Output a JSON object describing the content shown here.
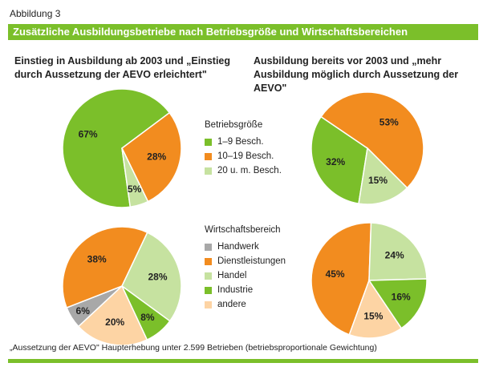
{
  "figure_label": "Abbildung 3",
  "title": "Zusätzliche Ausbildungsbetriebe nach Betriebsgröße und Wirtschaftsbereichen",
  "subtitle_left": "Einstieg in Ausbildung ab 2003 und „Einstieg durch Aussetzung der AEVO erleichtert\"",
  "subtitle_right": "Ausbildung bereits vor 2003 und „mehr Ausbildung möglich durch Aussetzung der AEVO\"",
  "legend_size": {
    "title": "Betriebsgröße",
    "items": [
      "1–9 Besch.",
      "10–19 Besch.",
      "20 u. m. Besch."
    ]
  },
  "legend_sector": {
    "title": "Wirtschaftsbereich",
    "items": [
      "Handwerk",
      "Dienstleistungen",
      "Handel",
      "Industrie",
      "andere"
    ]
  },
  "footer": "„Aussetzung der AEVO\" Haupterhebung unter 2.599 Betrieben (betriebsproportionale Gewichtung)",
  "colors": {
    "brand_green": "#7bbf2a",
    "green": "#7bbf2a",
    "orange": "#f28c1f",
    "light_green": "#c6e2a0",
    "gray": "#a8a8a8",
    "peach": "#fdd4a4"
  },
  "chart_data": [
    {
      "type": "pie",
      "title": "Einstieg in Ausbildung ab 2003 – Betriebsgröße",
      "categories": [
        "1–9 Besch.",
        "10–19 Besch.",
        "20 u. m. Besch."
      ],
      "values": [
        67,
        28,
        5
      ],
      "labels": [
        "67%",
        "28%",
        "5%"
      ]
    },
    {
      "type": "pie",
      "title": "Ausbildung bereits vor 2003 – Betriebsgröße",
      "categories": [
        "1–9 Besch.",
        "10–19 Besch.",
        "20 u. m. Besch."
      ],
      "values": [
        32,
        53,
        15
      ],
      "labels": [
        "32%",
        "53%",
        "15%"
      ]
    },
    {
      "type": "pie",
      "title": "Einstieg in Ausbildung ab 2003 – Wirtschaftsbereich",
      "categories": [
        "Handwerk",
        "Dienstleistungen",
        "Handel",
        "Industrie",
        "andere"
      ],
      "values": [
        6,
        38,
        28,
        8,
        20
      ],
      "labels": [
        "6%",
        "38%",
        "28%",
        "8%",
        "20%"
      ]
    },
    {
      "type": "pie",
      "title": "Ausbildung bereits vor 2003 – Wirtschaftsbereich",
      "categories": [
        "Handwerk",
        "Dienstleistungen",
        "Handel",
        "Industrie",
        "andere"
      ],
      "values": [
        0,
        45,
        24,
        16,
        15
      ],
      "labels": [
        "",
        "45%",
        "24%",
        "16%",
        "15%"
      ]
    }
  ]
}
